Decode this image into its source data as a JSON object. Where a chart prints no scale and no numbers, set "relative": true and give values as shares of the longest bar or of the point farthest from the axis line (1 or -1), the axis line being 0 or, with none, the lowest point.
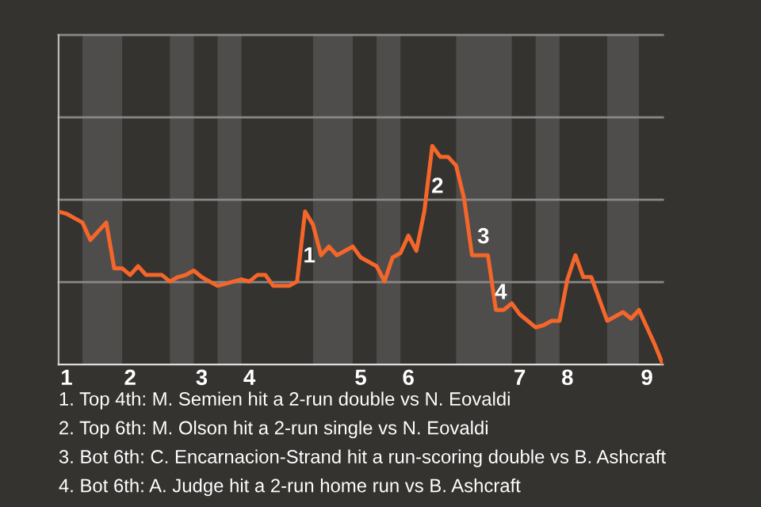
{
  "chart_data": {
    "type": "line",
    "relative": true,
    "categories": [
      null,
      "1",
      null,
      null,
      null,
      null,
      null,
      null,
      null,
      "2",
      null,
      null,
      null,
      null,
      null,
      null,
      null,
      null,
      "3",
      null,
      null,
      null,
      null,
      null,
      "4",
      null,
      null,
      null,
      null,
      null,
      null,
      null,
      null,
      null,
      null,
      null,
      null,
      null,
      "5",
      null,
      null,
      null,
      null,
      null,
      "6",
      null,
      null,
      null,
      null,
      null,
      null,
      null,
      null,
      null,
      null,
      null,
      null,
      null,
      "7",
      null,
      null,
      null,
      null,
      null,
      "8",
      null,
      null,
      null,
      null,
      null,
      null,
      null,
      null,
      null,
      "9",
      null,
      null
    ],
    "series": [
      {
        "color": "#f5662a",
        "values": [
          0.7,
          0.69,
          0.67,
          0.65,
          0.57,
          0.61,
          0.65,
          0.44,
          0.44,
          0.41,
          0.45,
          0.41,
          0.41,
          0.41,
          0.38,
          0.4,
          0.41,
          0.43,
          0.4,
          0.38,
          0.36,
          0.37,
          0.38,
          0.39,
          0.38,
          0.41,
          0.41,
          0.36,
          0.36,
          0.36,
          0.38,
          0.7,
          0.64,
          0.5,
          0.54,
          0.5,
          0.52,
          0.54,
          0.49,
          0.47,
          0.45,
          0.38,
          0.49,
          0.51,
          0.59,
          0.52,
          0.7,
          1.0,
          0.95,
          0.95,
          0.91,
          0.76,
          0.5,
          0.5,
          0.5,
          0.25,
          0.25,
          0.28,
          0.23,
          0.2,
          0.17,
          0.18,
          0.2,
          0.2,
          0.39,
          0.5,
          0.4,
          0.4,
          0.3,
          0.2,
          0.22,
          0.24,
          0.21,
          0.25,
          0.17,
          0.09,
          0
        ],
        "name": null
      }
    ],
    "ref_lines": [
      {
        "axis": "y",
        "value": 0.377,
        "color": "#8a8886"
      },
      {
        "axis": "y",
        "value": 0.754,
        "color": "#8a8886"
      },
      {
        "axis": "y",
        "value": 1.131,
        "color": "#8a8886"
      },
      {
        "axis": "y",
        "value": 1.508,
        "color": "#8a8886"
      }
    ],
    "annotations": [
      "1",
      "2",
      "3",
      "4",
      "1. Top 4th: M. Semien hit a 2-run double vs N. Eovaldi",
      "2. Top 6th: M. Olson hit a 2-run single vs N. Eovaldi",
      "3. Bot 6th: C. Encarnacion-Strand hit a run-scoring double vs B. Ashcraft",
      "4. Bot 6th: A. Judge hit a 2-run home run vs B. Ashcraft"
    ]
  }
}
